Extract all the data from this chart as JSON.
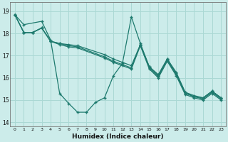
{
  "title": "",
  "xlabel": "Humidex (Indice chaleur)",
  "background_color": "#ccecea",
  "grid_color": "#aad8d4",
  "line_color": "#1e7a6e",
  "xlim": [
    -0.5,
    23.5
  ],
  "ylim": [
    13.8,
    19.4
  ],
  "yticks": [
    14,
    15,
    16,
    17,
    18,
    19
  ],
  "xticks": [
    0,
    1,
    2,
    3,
    4,
    5,
    6,
    7,
    8,
    9,
    10,
    11,
    12,
    13,
    14,
    15,
    16,
    17,
    18,
    19,
    20,
    21,
    22,
    23
  ],
  "lines": [
    {
      "x": [
        0,
        1,
        3,
        4,
        5,
        6,
        7,
        8,
        9,
        10,
        11,
        12,
        13,
        14,
        15,
        16,
        17,
        18,
        19,
        20,
        21,
        22,
        23
      ],
      "y": [
        18.85,
        18.4,
        18.55,
        17.7,
        15.3,
        14.85,
        14.45,
        14.45,
        14.9,
        15.1,
        16.1,
        16.65,
        18.75,
        17.55,
        16.5,
        16.15,
        16.85,
        16.25,
        15.35,
        15.15,
        15.1,
        15.4,
        15.1
      ]
    },
    {
      "x": [
        0,
        1,
        2,
        3,
        4,
        5,
        6,
        7,
        10,
        11,
        12,
        13,
        14,
        15,
        16,
        17,
        18,
        19,
        20,
        21,
        22,
        23
      ],
      "y": [
        18.85,
        18.05,
        18.05,
        18.25,
        17.65,
        17.55,
        17.5,
        17.45,
        17.05,
        16.85,
        16.7,
        16.55,
        17.5,
        16.5,
        16.1,
        16.85,
        16.2,
        15.35,
        15.2,
        15.1,
        15.4,
        15.1
      ]
    },
    {
      "x": [
        0,
        1,
        2,
        3,
        4,
        5,
        6,
        7,
        10,
        11,
        12,
        13,
        14,
        15,
        16,
        17,
        18,
        19,
        20,
        21,
        22,
        23
      ],
      "y": [
        18.85,
        18.05,
        18.05,
        18.25,
        17.65,
        17.55,
        17.45,
        17.4,
        16.95,
        16.75,
        16.6,
        16.45,
        17.5,
        16.45,
        16.05,
        16.8,
        16.15,
        15.3,
        15.15,
        15.05,
        15.35,
        15.05
      ]
    },
    {
      "x": [
        0,
        1,
        2,
        3,
        4,
        5,
        6,
        7,
        10,
        11,
        12,
        13,
        14,
        15,
        16,
        17,
        18,
        19,
        20,
        21,
        22,
        23
      ],
      "y": [
        18.85,
        18.05,
        18.05,
        18.25,
        17.65,
        17.5,
        17.4,
        17.35,
        16.9,
        16.7,
        16.55,
        16.4,
        17.45,
        16.4,
        16.0,
        16.75,
        16.1,
        15.25,
        15.1,
        15.0,
        15.3,
        15.0
      ]
    }
  ]
}
